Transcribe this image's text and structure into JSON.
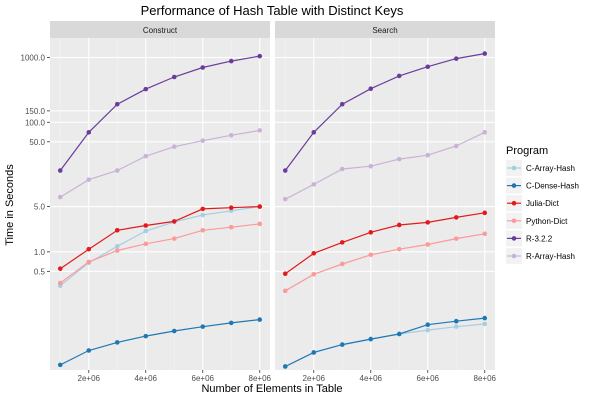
{
  "chart_data": {
    "type": "line",
    "title": "Performance of Hash Table with Distinct Keys",
    "xlabel": "Number of Elements in Table",
    "ylabel": "Time in Seconds",
    "y_scale": "log",
    "grid": true,
    "legend_position": "right",
    "x": [
      1000000,
      2000000,
      3000000,
      4000000,
      5000000,
      6000000,
      7000000,
      8000000
    ],
    "x_tick_values": [
      2000000,
      4000000,
      6000000,
      8000000
    ],
    "x_tick_labels": [
      "2e+06",
      "4e+06",
      "6e+06",
      "8e+06"
    ],
    "y_tick_values": [
      0.5,
      1,
      5,
      50,
      100,
      150,
      1000
    ],
    "y_tick_labels": [
      "0.5",
      "1.0",
      "5.0",
      "50.0",
      "100.0",
      "150.0",
      "1000.0"
    ],
    "legend_title": "Program",
    "facets": [
      {
        "name": "Construct",
        "series": [
          {
            "name": "C-Array-Hash",
            "color": "#a6cee3",
            "values": [
              0.3,
              0.68,
              1.22,
              2.1,
              2.9,
              3.7,
              4.3,
              5.0
            ]
          },
          {
            "name": "C-Dense-Hash",
            "color": "#1f78b4",
            "values": [
              0.018,
              0.03,
              0.04,
              0.05,
              0.06,
              0.07,
              0.08,
              0.09
            ]
          },
          {
            "name": "Julia-Dict",
            "color": "#e31a1c",
            "values": [
              0.55,
              1.1,
              2.15,
              2.55,
              2.95,
              4.6,
              4.8,
              5.0
            ]
          },
          {
            "name": "Python-Dict",
            "color": "#fb9a99",
            "values": [
              0.33,
              0.7,
              1.05,
              1.33,
              1.6,
              2.15,
              2.4,
              2.7
            ]
          },
          {
            "name": "R-3.2.2",
            "color": "#6a3d9a",
            "values": [
              18,
              70,
              190,
              325,
              500,
              700,
              880,
              1050
            ]
          },
          {
            "name": "R-Array-Hash",
            "color": "#cab2d6",
            "values": [
              7,
              13,
              18,
              30,
              42,
              52,
              63,
              75
            ]
          }
        ]
      },
      {
        "name": "Search",
        "series": [
          {
            "name": "C-Array-Hash",
            "color": "#a6cee3",
            "values": [
              0.017,
              0.028,
              0.037,
              0.045,
              0.054,
              0.062,
              0.07,
              0.077
            ]
          },
          {
            "name": "C-Dense-Hash",
            "color": "#1f78b4",
            "values": [
              0.017,
              0.028,
              0.037,
              0.045,
              0.054,
              0.075,
              0.085,
              0.095
            ]
          },
          {
            "name": "Julia-Dict",
            "color": "#e31a1c",
            "values": [
              0.46,
              0.95,
              1.4,
              2.0,
              2.6,
              2.85,
              3.4,
              4.0
            ]
          },
          {
            "name": "Python-Dict",
            "color": "#fb9a99",
            "values": [
              0.25,
              0.45,
              0.65,
              0.9,
              1.1,
              1.3,
              1.6,
              1.9
            ]
          },
          {
            "name": "R-3.2.2",
            "color": "#6a3d9a",
            "values": [
              18,
              70,
              190,
              330,
              520,
              720,
              960,
              1150
            ]
          },
          {
            "name": "R-Array-Hash",
            "color": "#cab2d6",
            "values": [
              6.5,
              11,
              19,
              21,
              27,
              31,
              43,
              70
            ]
          }
        ]
      }
    ]
  }
}
